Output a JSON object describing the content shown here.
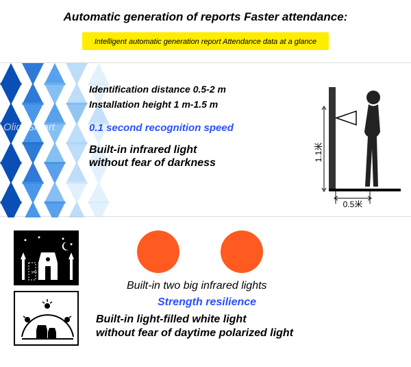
{
  "header": {
    "title": "Automatic generation of reports  Faster attendance:",
    "subtitle": "Intelligent automatic generation report   Attendance data at a glance"
  },
  "section1": {
    "watermark": "OlideSmart",
    "spec1": "Identification distance 0.5-2 m",
    "spec2": "Installation height 1 m-1.5 m",
    "speed": "0.1 second recognition speed",
    "infrared": "Built-in infrared light\nwithout fear of darkness",
    "diagram": {
      "height_label": "1.1米",
      "dist_label": "0.5米"
    },
    "triangle_colors": [
      "#0a4fb5",
      "#1e6fd4",
      "#3b8ee8",
      "#6fb4f0",
      "#a8d2f7",
      "#d6ebfb"
    ]
  },
  "section2": {
    "circle_color": "#ff5a1f",
    "line1": "Built-in two big infrared lights",
    "line2": "Strength resilience",
    "line3": "Built-in light-filled white light\nwithout fear of daytime polarized light"
  }
}
